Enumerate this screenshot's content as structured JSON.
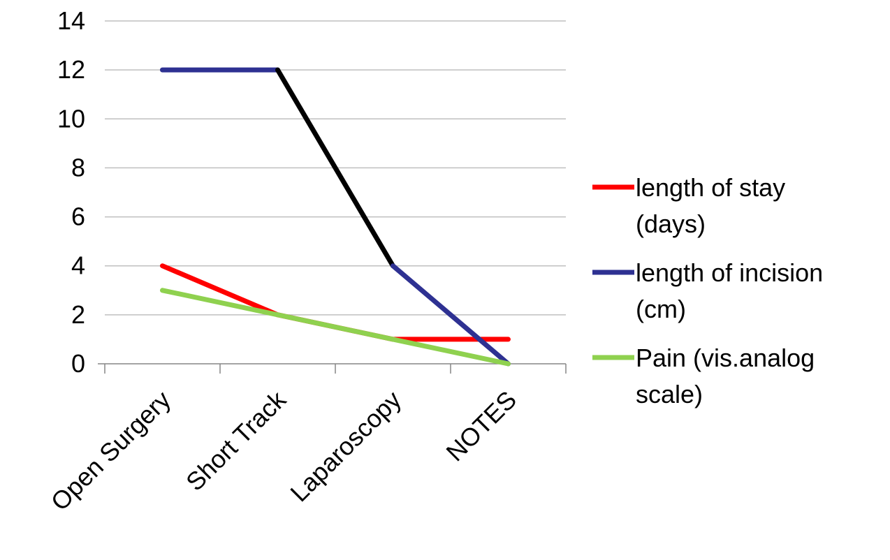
{
  "chart_data": {
    "type": "line",
    "title": "",
    "xlabel": "",
    "ylabel": "",
    "categories": [
      "Open Surgery",
      "Short Track",
      "Laparoscopy",
      "NOTES"
    ],
    "ylim": [
      0,
      14
    ],
    "yticks": [
      0,
      2,
      4,
      6,
      8,
      10,
      12,
      14
    ],
    "grid": true,
    "legend_position": "right",
    "series": [
      {
        "name_lines": [
          "length of stay",
          "(days)"
        ],
        "color": "#ff0000",
        "values": [
          4,
          2,
          1,
          1
        ]
      },
      {
        "name_lines": [
          "length of incision",
          "(cm)"
        ],
        "color": "#2e3192",
        "values": [
          12,
          12,
          4,
          0
        ],
        "segment_colors": [
          "#2e3192",
          "#000000",
          "#2e3192"
        ]
      },
      {
        "name_lines": [
          "Pain (vis.analog",
          "scale)"
        ],
        "color": "#8fd14f",
        "values": [
          3,
          2,
          1,
          0
        ]
      }
    ]
  }
}
